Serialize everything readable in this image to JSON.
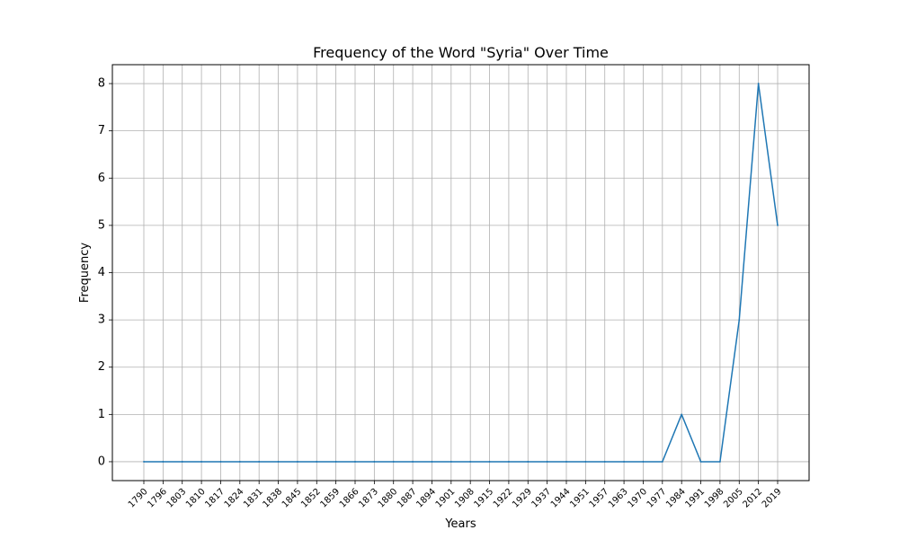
{
  "chart_data": {
    "type": "line",
    "title": "Frequency of the Word \"Syria\" Over Time",
    "xlabel": "Years",
    "ylabel": "Frequency",
    "categories": [
      "1790",
      "1796",
      "1803",
      "1810",
      "1817",
      "1824",
      "1831",
      "1838",
      "1845",
      "1852",
      "1859",
      "1866",
      "1873",
      "1880",
      "1887",
      "1894",
      "1901",
      "1908",
      "1915",
      "1922",
      "1929",
      "1937",
      "1944",
      "1951",
      "1957",
      "1963",
      "1970",
      "1977",
      "1984",
      "1991",
      "1998",
      "2005",
      "2012",
      "2019"
    ],
    "series": [
      {
        "values": [
          0,
          0,
          0,
          0,
          0,
          0,
          0,
          0,
          0,
          0,
          0,
          0,
          0,
          0,
          0,
          0,
          0,
          0,
          0,
          0,
          0,
          0,
          0,
          0,
          0,
          0,
          0,
          0,
          1,
          0,
          0,
          3,
          8,
          5
        ]
      }
    ],
    "yticks": [
      0,
      1,
      2,
      3,
      4,
      5,
      6,
      7,
      8
    ],
    "ylim": [
      -0.4,
      8.4
    ],
    "grid": true,
    "legend": "none",
    "line_color": "#1f77b4"
  }
}
